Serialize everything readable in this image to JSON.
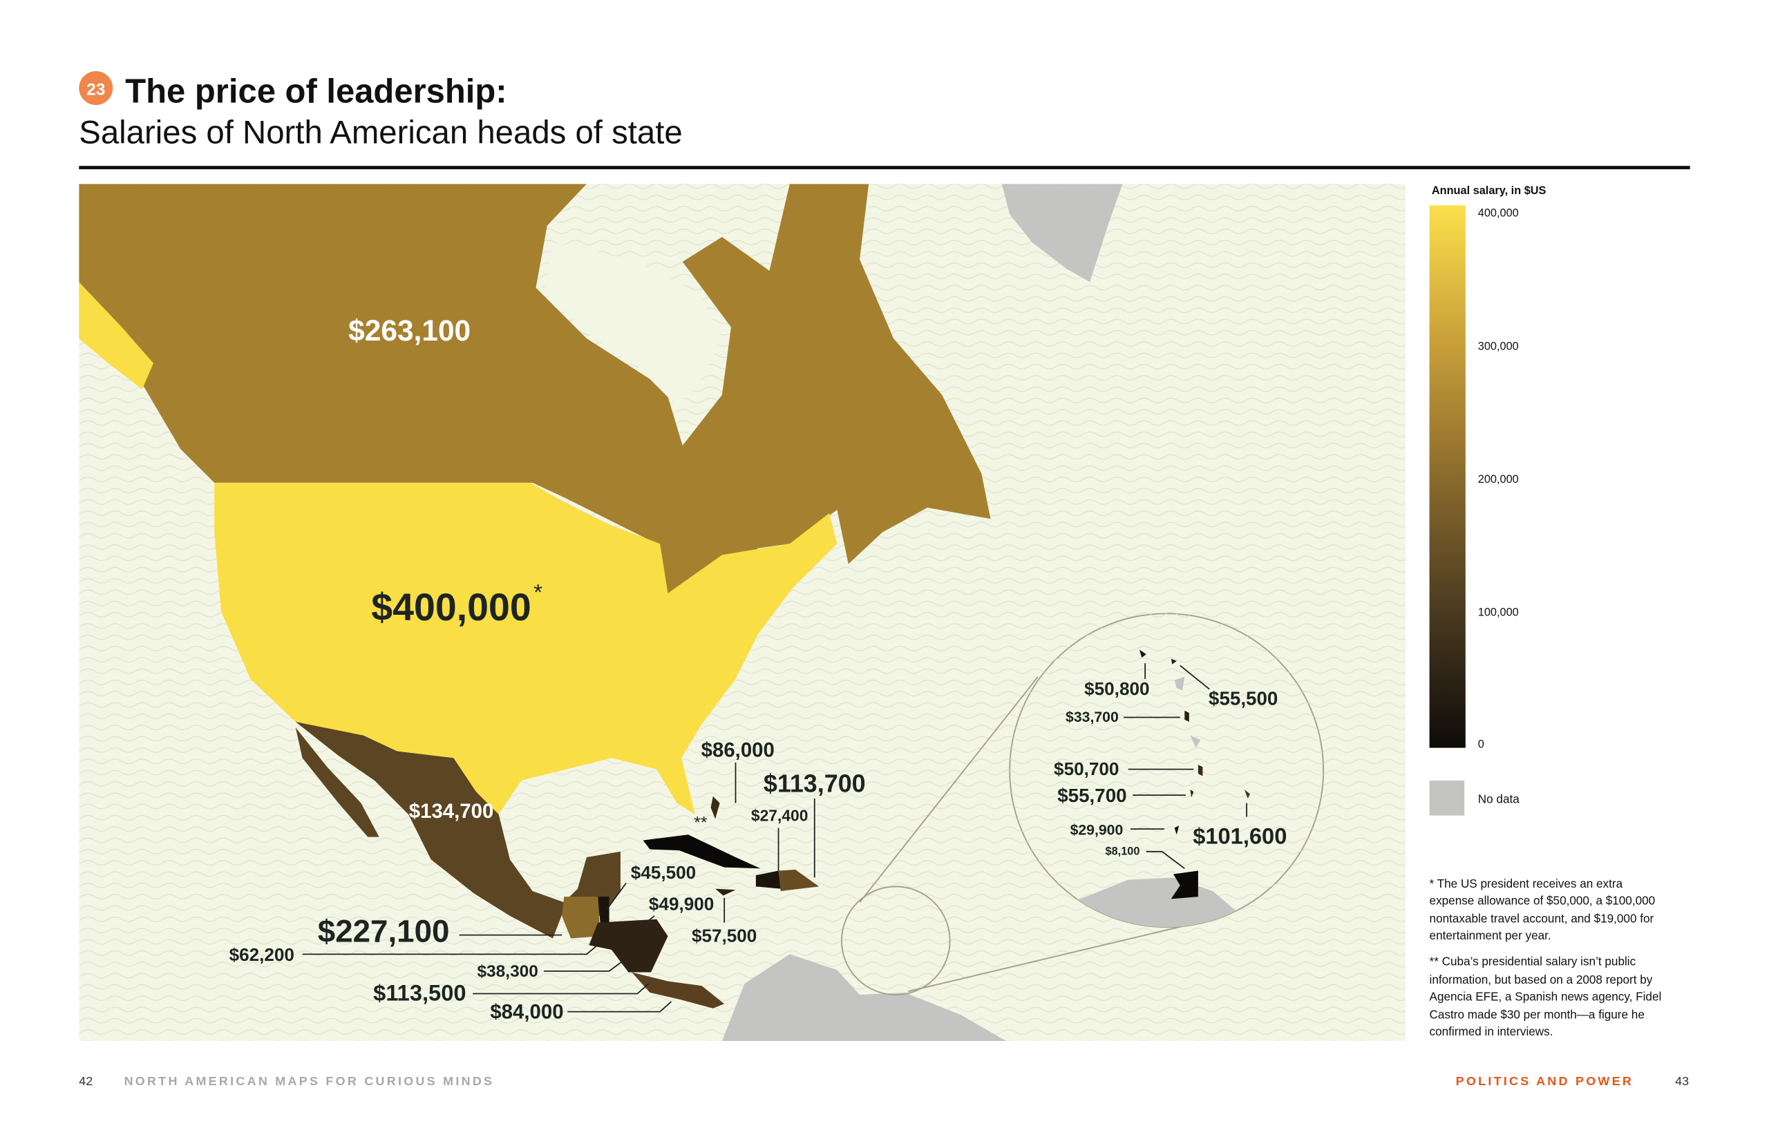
{
  "header": {
    "badge": "23",
    "title": "The price of leadership:",
    "subtitle": "Salaries of North American heads of state"
  },
  "colors": {
    "badge": "#f0864a",
    "ocean": "#f3f6e5",
    "no_data": "#c4c4c2",
    "scale_max": "#fbe04a",
    "scale_min": "#0e0b08",
    "footer_accent": "#e2571c"
  },
  "map_labels": {
    "canada": "$263,100",
    "usa": "$400,000",
    "usa_mark": "*",
    "mexico": "$134,700",
    "guatemala": "$227,100",
    "el_salvador": "$62,200",
    "honduras_a": "$38,300",
    "costa_rica": "$113,500",
    "panama": "$84,000",
    "belize": "$45,500",
    "honduras_b": "$49,900",
    "jamaica": "$57,500",
    "bahamas": "$86,000",
    "haiti": "$27,400",
    "dominican_republic": "$113,700",
    "cuba_mark": "**"
  },
  "inset_labels": {
    "a": "$50,800",
    "b": "$55,500",
    "c": "$33,700",
    "d": "$50,700",
    "e": "$55,700",
    "f": "$29,900",
    "g": "$8,100",
    "h": "$101,600"
  },
  "legend": {
    "title": "Annual salary, in $US",
    "ticks": [
      "400,000",
      "300,000",
      "200,000",
      "100,000",
      "0"
    ],
    "no_data": "No data"
  },
  "footnotes": {
    "note1": [
      "* The US president receives an extra",
      "expense allowance of $50,000, a $100,000",
      "nontaxable travel account, and $19,000 for",
      "entertainment per year."
    ],
    "note2": [
      "** Cuba’s presidential salary isn’t public",
      "information, but based on a 2008 report by",
      "Agencia EFE, a Spanish news agency, Fidel",
      "Castro made $30 per month—a figure he",
      "confirmed in interviews."
    ]
  },
  "footer": {
    "left_page": "42",
    "left_title": "NORTH AMERICAN MAPS FOR CURIOUS MINDS",
    "right_title": "POLITICS AND POWER",
    "right_page": "43"
  },
  "chart_data": {
    "type": "choropleth",
    "title": "The price of leadership:",
    "subtitle": "Salaries of North American heads of state",
    "legend_title": "Annual salary, in $US",
    "scale_range": [
      0,
      400000
    ],
    "scale_ticks": [
      400000,
      300000,
      200000,
      100000,
      0
    ],
    "no_data_label": "No data",
    "value_labels": [
      263100,
      400000,
      134700,
      227100,
      62200,
      38300,
      113500,
      84000,
      45500,
      49900,
      57500,
      86000,
      27400,
      113700,
      50800,
      55500,
      33700,
      50700,
      55700,
      29900,
      8100,
      101600
    ]
  }
}
